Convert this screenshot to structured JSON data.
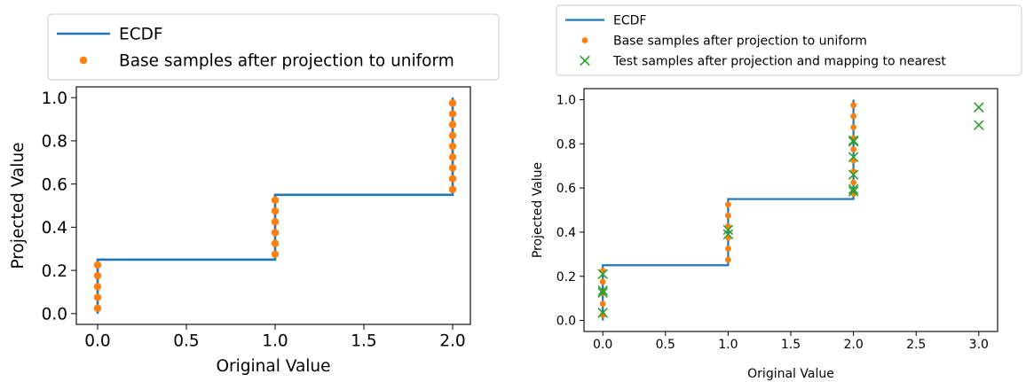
{
  "chart_data": [
    {
      "type": "line",
      "title": "",
      "xlabel": "Original Value",
      "ylabel": "Projected Value",
      "xlim": [
        -0.12,
        2.1
      ],
      "ylim": [
        -0.05,
        1.05
      ],
      "xticks": [
        0.0,
        0.5,
        1.0,
        1.5,
        2.0
      ],
      "yticks": [
        0.0,
        0.2,
        0.4,
        0.6,
        0.8,
        1.0
      ],
      "xtick_labels": [
        "0.0",
        "0.5",
        "1.0",
        "1.5",
        "2.0"
      ],
      "ytick_labels": [
        "0.0",
        "0.2",
        "0.4",
        "0.6",
        "0.8",
        "1.0"
      ],
      "grid": false,
      "legend_position": "above-left",
      "series": [
        {
          "name": "ECDF",
          "kind": "step",
          "color": "#1f77b4",
          "x": [
            0,
            0,
            1,
            1,
            2,
            2
          ],
          "y": [
            0.0,
            0.25,
            0.25,
            0.55,
            0.55,
            1.0
          ]
        },
        {
          "name": "Base samples after projection to uniform",
          "kind": "scatter",
          "marker": "circle",
          "color": "#ff7f0e",
          "x": [
            0,
            0,
            0,
            0,
            0,
            1,
            1,
            1,
            1,
            1,
            1,
            2,
            2,
            2,
            2,
            2,
            2,
            2,
            2,
            2
          ],
          "y": [
            0.025,
            0.075,
            0.125,
            0.175,
            0.225,
            0.275,
            0.325,
            0.375,
            0.425,
            0.475,
            0.525,
            0.575,
            0.625,
            0.675,
            0.725,
            0.775,
            0.825,
            0.875,
            0.925,
            0.975
          ]
        }
      ]
    },
    {
      "type": "line",
      "title": "",
      "xlabel": "Original Value",
      "ylabel": "Projected Value",
      "xlim": [
        -0.15,
        3.15
      ],
      "ylim": [
        -0.05,
        1.05
      ],
      "xticks": [
        0.0,
        0.5,
        1.0,
        1.5,
        2.0,
        2.5,
        3.0
      ],
      "yticks": [
        0.0,
        0.2,
        0.4,
        0.6,
        0.8,
        1.0
      ],
      "xtick_labels": [
        "0.0",
        "0.5",
        "1.0",
        "1.5",
        "2.0",
        "2.5",
        "3.0"
      ],
      "ytick_labels": [
        "0.0",
        "0.2",
        "0.4",
        "0.6",
        "0.8",
        "1.0"
      ],
      "grid": false,
      "legend_position": "above",
      "series": [
        {
          "name": "ECDF",
          "kind": "step",
          "color": "#1f77b4",
          "x": [
            0,
            0,
            1,
            1,
            2,
            2
          ],
          "y": [
            0.0,
            0.25,
            0.25,
            0.55,
            0.55,
            1.0
          ]
        },
        {
          "name": "Base samples after projection to uniform",
          "kind": "scatter",
          "marker": "circle",
          "color": "#ff7f0e",
          "x": [
            0,
            0,
            0,
            0,
            0,
            1,
            1,
            1,
            1,
            1,
            1,
            2,
            2,
            2,
            2,
            2,
            2,
            2,
            2,
            2
          ],
          "y": [
            0.025,
            0.075,
            0.125,
            0.175,
            0.225,
            0.275,
            0.325,
            0.375,
            0.425,
            0.475,
            0.525,
            0.575,
            0.625,
            0.675,
            0.725,
            0.775,
            0.825,
            0.875,
            0.925,
            0.975
          ]
        },
        {
          "name": "Test samples after projection and mapping to nearest",
          "kind": "scatter",
          "marker": "x",
          "color": "#2ca02c",
          "x": [
            0,
            0,
            0,
            0,
            1,
            1,
            2,
            2,
            2,
            2,
            2,
            2,
            3,
            3
          ],
          "y": [
            0.035,
            0.125,
            0.135,
            0.21,
            0.39,
            0.41,
            0.585,
            0.595,
            0.66,
            0.74,
            0.81,
            0.815,
            0.885,
            0.965
          ]
        }
      ]
    }
  ]
}
